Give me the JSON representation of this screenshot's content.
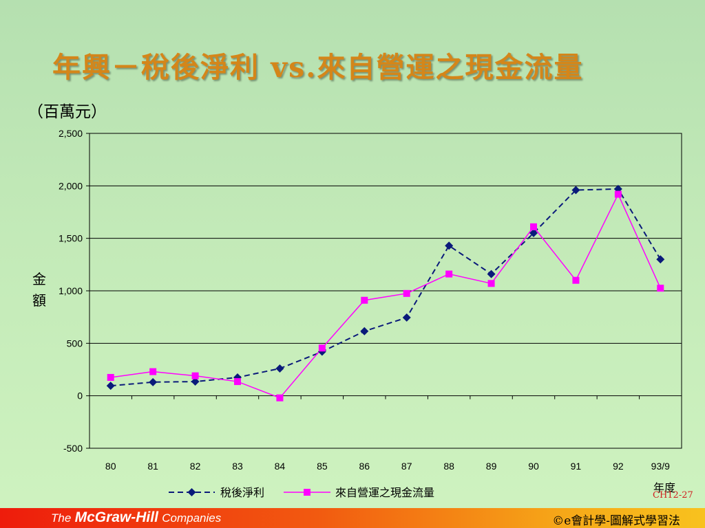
{
  "slide": {
    "title": "年興－稅後淨利 vs.來自營運之現金流量",
    "unit_label": "（百萬元）",
    "page_number": "CH12-27"
  },
  "footer": {
    "publisher_prefix": "The",
    "publisher_name": "McGraw-Hill",
    "publisher_suffix": "Companies",
    "copyright": "©e會計學-圖解式學習法"
  },
  "colors": {
    "title": "#d4861a",
    "net_income": "#0a1a7a",
    "cash_flow": "#ff00ff",
    "footer_start": "#ee1c0c",
    "footer_end": "#f8c21e"
  },
  "chart_data": {
    "type": "line",
    "ylabel": "金額",
    "xlabel": "年度",
    "ylim": [
      -500,
      2500
    ],
    "y_ticks": [
      -500,
      0,
      500,
      1000,
      1500,
      2000,
      2500
    ],
    "y_tick_labels": [
      "-500",
      "0",
      "500",
      "1,000",
      "1,500",
      "2,000",
      "2,500"
    ],
    "grid": true,
    "legend_position": "bottom",
    "categories": [
      "80",
      "81",
      "82",
      "83",
      "84",
      "85",
      "86",
      "87",
      "88",
      "89",
      "90",
      "91",
      "92",
      "93/9"
    ],
    "series": [
      {
        "name": "稅後淨利",
        "color": "#0a1a7a",
        "line_style": "dashed",
        "marker": "diamond",
        "values": [
          95,
          130,
          135,
          175,
          260,
          420,
          615,
          745,
          1430,
          1160,
          1550,
          1960,
          1970,
          1300
        ]
      },
      {
        "name": "來自營運之現金流量",
        "color": "#ff00ff",
        "line_style": "solid",
        "marker": "square",
        "values": [
          175,
          230,
          190,
          135,
          -20,
          455,
          910,
          975,
          1160,
          1070,
          1610,
          1100,
          1920,
          1025
        ]
      }
    ]
  }
}
